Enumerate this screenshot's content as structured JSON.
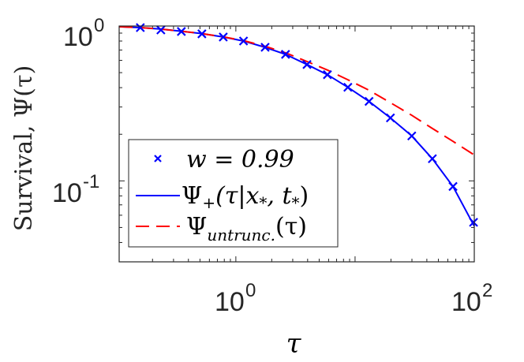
{
  "chart_data": {
    "type": "line",
    "title": "",
    "xlabel": "τ",
    "ylabel": "Survival, Ψ(τ)",
    "xscale": "log",
    "yscale": "log",
    "xlim": [
      0.105,
      100
    ],
    "ylim": [
      0.03,
      1
    ],
    "grid": false,
    "legend_position": "lower left",
    "x_ticks": [
      {
        "value": 1,
        "base": "10",
        "exp": "0"
      },
      {
        "value": 100,
        "base": "10",
        "exp": "2"
      }
    ],
    "y_ticks": [
      {
        "value": 1,
        "base": "10",
        "exp": "0"
      },
      {
        "value": 0.1,
        "base": "10",
        "exp": "-1"
      }
    ],
    "series": [
      {
        "name": "w = 0.99",
        "legend_label": "w = 0.99",
        "style": "markers",
        "marker": "x",
        "color": "#0000ff",
        "x": [
          0.158,
          0.235,
          0.349,
          0.519,
          0.784,
          1.16,
          1.76,
          2.61,
          3.95,
          5.86,
          8.7,
          13.1,
          19.8,
          29.9,
          44.5,
          66.3,
          98.6
        ],
        "y": [
          0.977,
          0.943,
          0.922,
          0.89,
          0.849,
          0.8,
          0.729,
          0.656,
          0.564,
          0.485,
          0.402,
          0.326,
          0.255,
          0.195,
          0.139,
          0.092,
          0.054
        ]
      },
      {
        "name": "Ψ+(τ|x*, t*)",
        "legend_label": "Ψ+(τ|x*, t*)",
        "style": "solid",
        "color": "#0000ff",
        "x": [
          0.105,
          0.158,
          0.235,
          0.349,
          0.519,
          0.784,
          1.16,
          1.76,
          2.61,
          3.95,
          5.86,
          8.7,
          13.1,
          19.8,
          29.9,
          44.5,
          66.3,
          100
        ],
        "y": [
          0.99,
          0.977,
          0.955,
          0.925,
          0.893,
          0.85,
          0.8,
          0.729,
          0.656,
          0.564,
          0.485,
          0.402,
          0.326,
          0.255,
          0.195,
          0.139,
          0.092,
          0.051
        ]
      },
      {
        "name": "Ψuntrunc.(τ)",
        "legend_label": "Ψuntrunc.(τ)",
        "style": "dashed",
        "color": "#ff0000",
        "x": [
          0.105,
          0.158,
          0.235,
          0.349,
          0.519,
          0.784,
          1.16,
          1.76,
          2.61,
          3.95,
          5.86,
          8.7,
          13.1,
          19.8,
          29.9,
          44.5,
          66.3,
          100
        ],
        "y": [
          0.99,
          0.977,
          0.955,
          0.925,
          0.893,
          0.852,
          0.805,
          0.74,
          0.672,
          0.59,
          0.52,
          0.45,
          0.385,
          0.32,
          0.265,
          0.218,
          0.18,
          0.147
        ]
      }
    ]
  },
  "axes": {
    "xlabel": "τ",
    "ylabel_text": "Survival, ",
    "ylabel_math": "Ψ(τ)",
    "x_tick_labels": [
      {
        "base": "10",
        "exp": "0"
      },
      {
        "base": "10",
        "exp": "2"
      }
    ],
    "y_tick_labels": [
      {
        "base": "10",
        "exp": "0"
      },
      {
        "base": "10",
        "exp": "-1"
      }
    ]
  },
  "legend": {
    "items": [
      {
        "label": "w = 0.99"
      },
      {
        "label_main": "Ψ",
        "label_sub": "+",
        "label_rest": "(τ|x",
        "label_sub2": "*",
        "label_rest2": ", t",
        "label_sub3": "*",
        "label_end": ")"
      },
      {
        "label_main": "Ψ",
        "label_sub": "untrunc.",
        "label_rest": "(τ)"
      }
    ]
  }
}
